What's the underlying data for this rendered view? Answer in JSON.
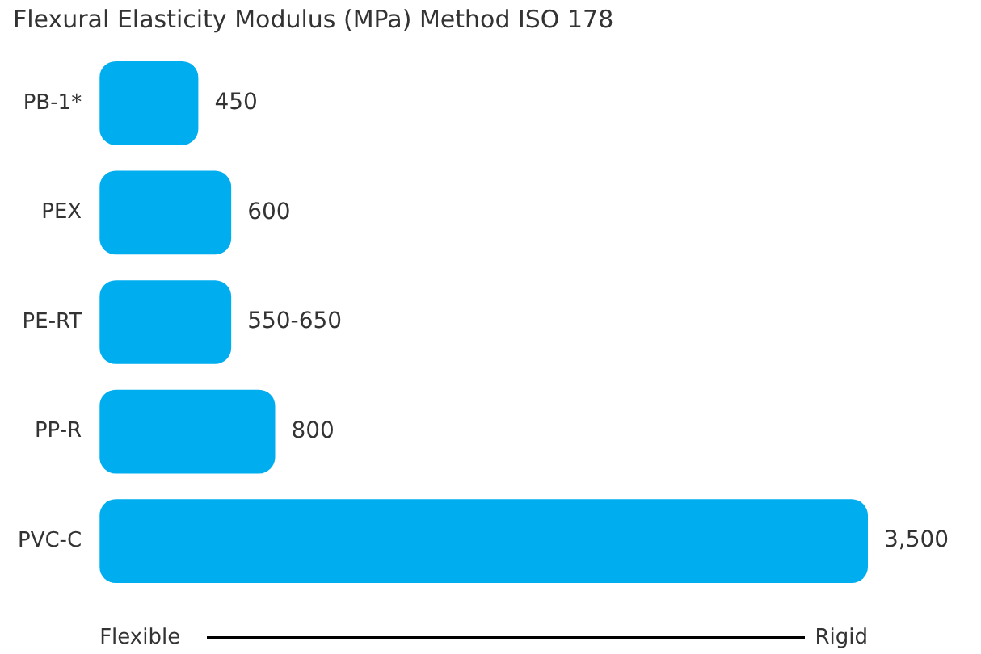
{
  "chart_data": {
    "type": "bar",
    "orientation": "horizontal",
    "tick_labels": "y",
    "title": "Flexural Elasticity Modulus (MPa) Method ISO 178",
    "categories": [
      "PB-1*",
      "PEX",
      "PE-RT",
      "PP-R",
      "PVC-C"
    ],
    "values": [
      450,
      600,
      600,
      800,
      3500
    ],
    "value_labels": [
      "450",
      "600",
      "550-650",
      "800",
      "3,500"
    ],
    "color": "#00aeef",
    "annotations": [
      "Flexible",
      "Rigid"
    ]
  }
}
